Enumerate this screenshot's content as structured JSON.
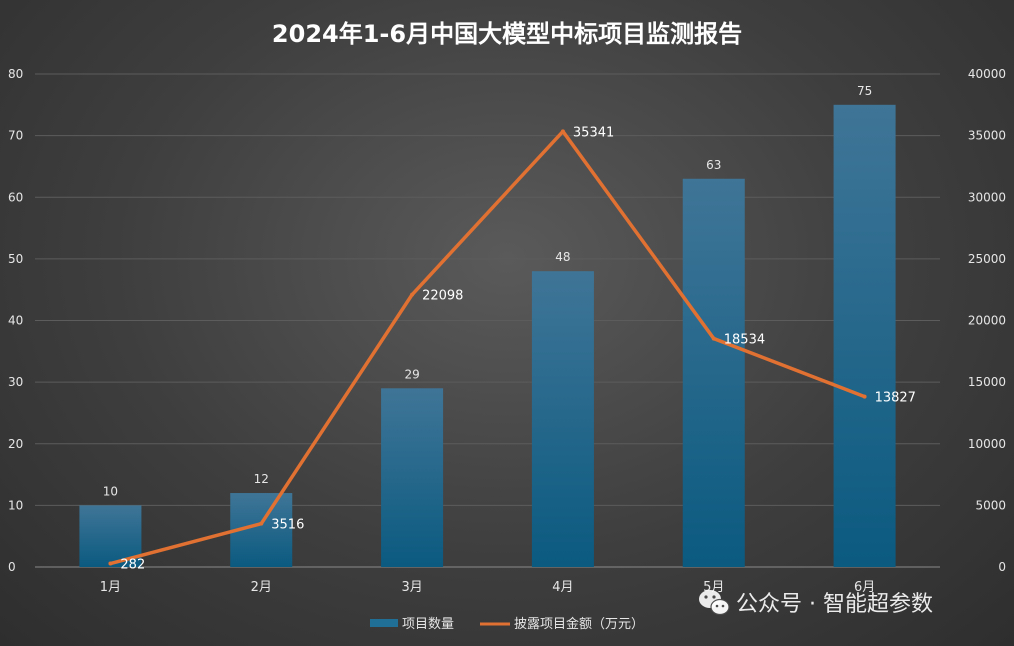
{
  "chart_data": {
    "type": "bar",
    "title": "2024年1-6月中国大模型中标项目监测报告",
    "categories": [
      "1月",
      "2月",
      "3月",
      "4月",
      "5月",
      "6月"
    ],
    "series": [
      {
        "name": "项目数量",
        "type": "bar",
        "axis": "left",
        "values": [
          10,
          12,
          29,
          48,
          63,
          75
        ],
        "color": "#1f6f96"
      },
      {
        "name": "披露项目金额（万元）",
        "type": "line",
        "axis": "right",
        "values": [
          282,
          3516,
          22098,
          35341,
          18534,
          13827
        ],
        "color": "#e07132"
      }
    ],
    "y_left": {
      "min": 0,
      "max": 80,
      "ticks": [
        0,
        10,
        20,
        30,
        40,
        50,
        60,
        70,
        80
      ]
    },
    "y_right": {
      "min": 0,
      "max": 40000,
      "ticks": [
        0,
        5000,
        10000,
        15000,
        20000,
        25000,
        30000,
        35000,
        40000
      ]
    },
    "grid": true,
    "legend_position": "bottom"
  },
  "watermark": {
    "text": "公众号 · 智能超参数",
    "icon": "wechat-icon"
  }
}
